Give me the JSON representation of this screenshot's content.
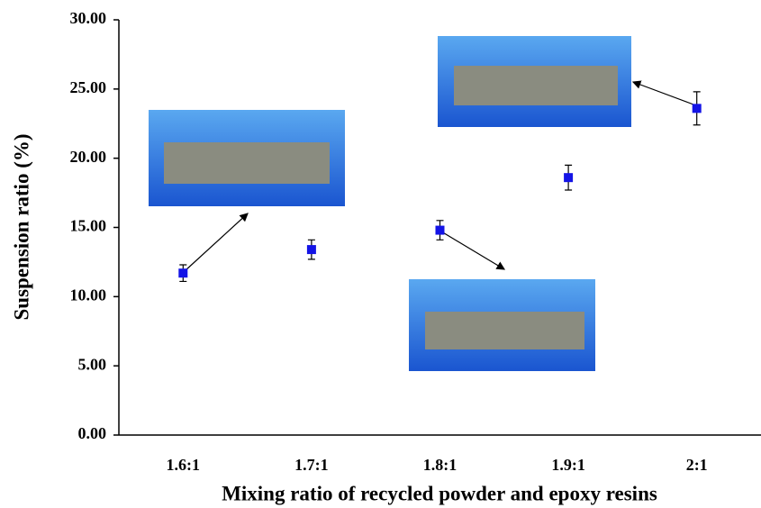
{
  "chart_data": {
    "type": "scatter",
    "x_label": "Mixing ratio of recycled powder and epoxy resins",
    "y_label": "Suspension ratio (%)",
    "categories": [
      "1.6:1",
      "1.7:1",
      "1.8:1",
      "1.9:1",
      "2:1"
    ],
    "series": [
      {
        "color": "#1414e6",
        "values": [
          11.7,
          13.4,
          14.8,
          18.6,
          23.6
        ],
        "errors": [
          0.6,
          0.7,
          0.7,
          0.9,
          1.2
        ]
      }
    ],
    "ylim": [
      0,
      30
    ],
    "yticks": [
      {
        "value": 0,
        "label": "0.00"
      },
      {
        "value": 5,
        "label": "5.00"
      },
      {
        "value": 10,
        "label": "10.00"
      },
      {
        "value": 15,
        "label": "15.00"
      },
      {
        "value": 20,
        "label": "20.00"
      },
      {
        "value": 25,
        "label": "25.00"
      },
      {
        "value": 30,
        "label": "30.00"
      }
    ],
    "grid": false
  }
}
